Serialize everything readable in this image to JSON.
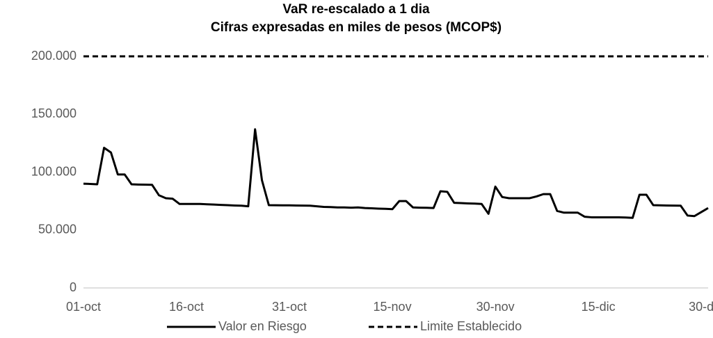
{
  "chart_data": {
    "type": "line",
    "title": "VaR re-escalado a 1 dia",
    "subtitle": "Cifras expresadas en miles de pesos (MCOP$)",
    "categories": [
      "01-oct",
      null,
      null,
      null,
      null,
      null,
      null,
      null,
      null,
      null,
      null,
      null,
      null,
      null,
      null,
      "16-oct",
      null,
      null,
      null,
      null,
      null,
      null,
      null,
      null,
      null,
      null,
      null,
      null,
      null,
      null,
      "31-oct",
      null,
      null,
      null,
      null,
      null,
      null,
      null,
      null,
      null,
      null,
      null,
      null,
      null,
      null,
      "15-nov",
      null,
      null,
      null,
      null,
      null,
      null,
      null,
      null,
      null,
      null,
      null,
      null,
      null,
      null,
      "30-nov",
      null,
      null,
      null,
      null,
      null,
      null,
      null,
      null,
      null,
      null,
      null,
      null,
      null,
      null,
      "15-dic",
      null,
      null,
      null,
      null,
      null,
      null,
      null,
      null,
      null,
      null,
      null,
      null,
      null,
      null,
      "30-d",
      null
    ],
    "series": [
      {
        "name": "Valor en Riesgo",
        "color": "#000000",
        "dash": "solid",
        "values": [
          90000,
          89800,
          89500,
          121000,
          117000,
          98000,
          98000,
          89500,
          89300,
          89200,
          89000,
          80000,
          77500,
          77000,
          72500,
          72500,
          72500,
          72500,
          72200,
          72000,
          71700,
          71500,
          71200,
          71000,
          70500,
          137000,
          93000,
          71500,
          71400,
          71300,
          71300,
          71200,
          71100,
          71000,
          70500,
          70000,
          69800,
          69500,
          69500,
          69300,
          69500,
          69000,
          68800,
          68500,
          68300,
          68000,
          75000,
          75000,
          69500,
          69300,
          69200,
          69000,
          83500,
          83000,
          73500,
          73300,
          73000,
          72800,
          72500,
          64000,
          87500,
          78500,
          77500,
          77500,
          77500,
          77500,
          79000,
          81000,
          81000,
          66500,
          65000,
          65000,
          65000,
          61500,
          61000,
          61000,
          61000,
          61000,
          61000,
          60800,
          60500,
          80500,
          80500,
          71500,
          71300,
          71200,
          71100,
          71000,
          62500,
          62000,
          65500,
          69000
        ]
      },
      {
        "name": "Limite Establecido",
        "color": "#000000",
        "dash": "dashed",
        "values": [
          200000,
          200000,
          200000,
          200000,
          200000,
          200000,
          200000,
          200000,
          200000,
          200000,
          200000,
          200000,
          200000,
          200000,
          200000,
          200000,
          200000,
          200000,
          200000,
          200000,
          200000,
          200000,
          200000,
          200000,
          200000,
          200000,
          200000,
          200000,
          200000,
          200000,
          200000,
          200000,
          200000,
          200000,
          200000,
          200000,
          200000,
          200000,
          200000,
          200000,
          200000,
          200000,
          200000,
          200000,
          200000,
          200000,
          200000,
          200000,
          200000,
          200000,
          200000,
          200000,
          200000,
          200000,
          200000,
          200000,
          200000,
          200000,
          200000,
          200000,
          200000,
          200000,
          200000,
          200000,
          200000,
          200000,
          200000,
          200000,
          200000,
          200000,
          200000,
          200000,
          200000,
          200000,
          200000,
          200000,
          200000,
          200000,
          200000,
          200000,
          200000,
          200000,
          200000,
          200000,
          200000,
          200000,
          200000,
          200000,
          200000,
          200000,
          200000,
          200000
        ]
      }
    ],
    "ylim": [
      0,
      200000
    ],
    "yticks": [
      0,
      {
        "value": 50000,
        "label": "50.000"
      },
      {
        "value": 100000,
        "label": "100.000"
      },
      {
        "value": 150000,
        "label": "150.000"
      },
      {
        "value": 200000,
        "label": "200.000"
      }
    ],
    "grid": false,
    "legend": "bottom"
  }
}
